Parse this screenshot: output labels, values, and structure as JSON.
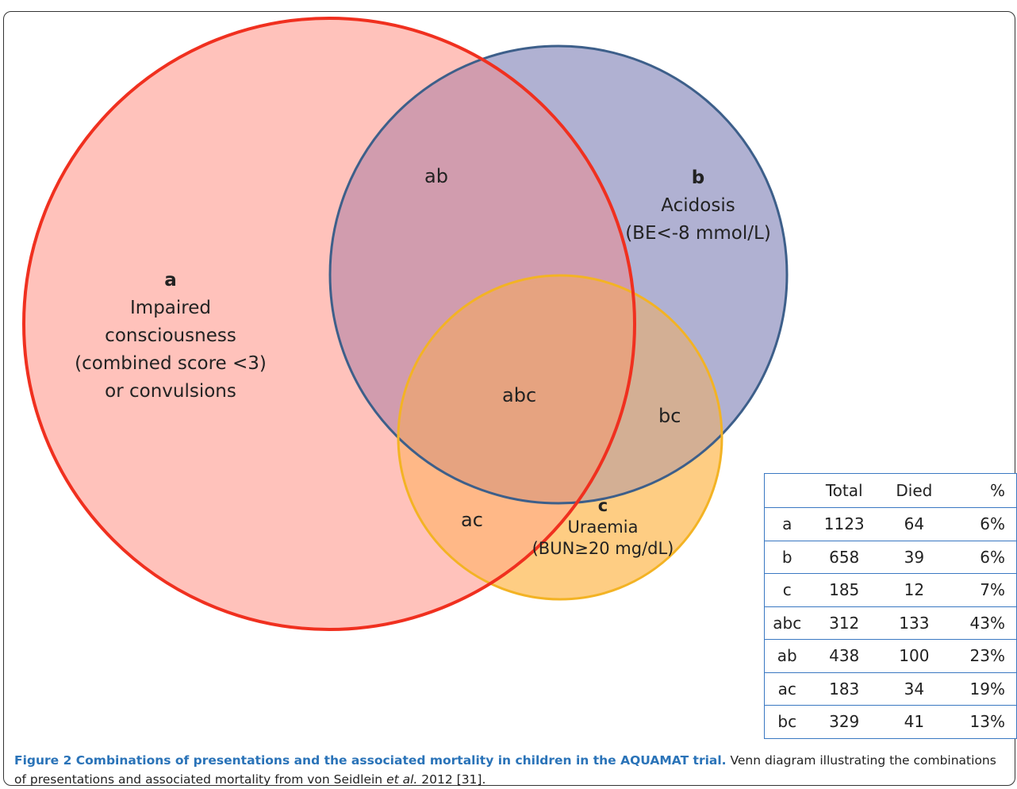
{
  "colors": {
    "circle_a_fill": "#ffc2bb",
    "circle_a_stroke": "#f0301f",
    "circle_b_fill": "#d2dfee",
    "circle_b_stroke": "#3d5f8a",
    "circle_c_fill": "#fde8b3",
    "circle_c_stroke": "#f3b324",
    "table_border": "#3a78c2",
    "caption_title": "#2a73b8"
  },
  "sets": {
    "a": {
      "letter": "a",
      "lines": [
        "Impaired",
        "consciousness",
        "(combined score <3)",
        "or convulsions"
      ]
    },
    "b": {
      "letter": "b",
      "lines": [
        "Acidosis",
        "(BE<-8 mmol/L)"
      ]
    },
    "c": {
      "letter": "c",
      "lines": [
        "Uraemia",
        "(BUN≥20 mg/dL)"
      ]
    }
  },
  "regions": {
    "ab": "ab",
    "abc": "abc",
    "bc": "bc",
    "ac": "ac"
  },
  "table": {
    "headers": [
      "",
      "Total",
      "Died",
      "%"
    ],
    "rows": [
      [
        "a",
        "1123",
        "64",
        "6%"
      ],
      [
        "b",
        "658",
        "39",
        "6%"
      ],
      [
        "c",
        "185",
        "12",
        "7%"
      ],
      [
        "abc",
        "312",
        "133",
        "43%"
      ],
      [
        "ab",
        "438",
        "100",
        "23%"
      ],
      [
        "ac",
        "183",
        "34",
        "19%"
      ],
      [
        "bc",
        "329",
        "41",
        "13%"
      ]
    ]
  },
  "caption": {
    "title": "Figure 2 Combinations of presentations and the associated mortality in children in the AQUAMAT trial.",
    "text_1": " Venn diagram illustrating the combinations of presentations and associated mortality from von Seidlein ",
    "text_italic": "et al.",
    "text_2": " 2012 [31]."
  }
}
